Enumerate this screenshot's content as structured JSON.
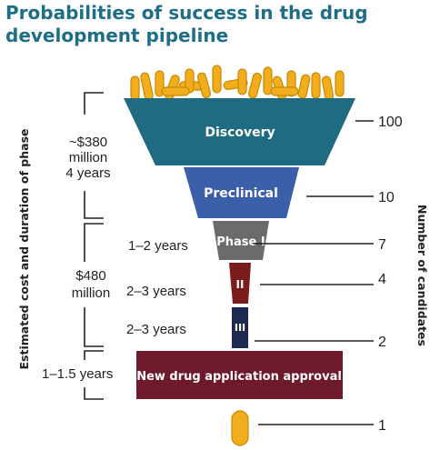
{
  "title_line1": "Probabilities of success in the drug",
  "title_line2": "development pipeline",
  "stages": [
    {
      "label": "Discovery",
      "count": "100",
      "color": "#1f6b82"
    },
    {
      "label": "Preclinical",
      "count": "10",
      "color": "#3b5fa8"
    },
    {
      "label": "Phase I",
      "count": "7",
      "color": "#6b6b6b"
    },
    {
      "label": "II",
      "count": "4",
      "color": "#7a1c1c"
    },
    {
      "label": "III",
      "count": "2",
      "color": "#1c2a52"
    },
    {
      "label": "New drug application approval",
      "count": "",
      "color": "#6e1a2c"
    }
  ],
  "final_count": "1",
  "left_labels": {
    "discovery_cost": "~$380",
    "discovery_million": "million",
    "discovery_years": "4 years",
    "phase1_years": "1–2 years",
    "clinical_cost": "$480",
    "clinical_million": "million",
    "phase2_years": "2–3 years",
    "phase3_years": "2–3 years",
    "approval_years": "1–1.5 years"
  },
  "left_axis_label": "Estimated cost and duration of phase",
  "right_axis_label": "Number of candidates"
}
